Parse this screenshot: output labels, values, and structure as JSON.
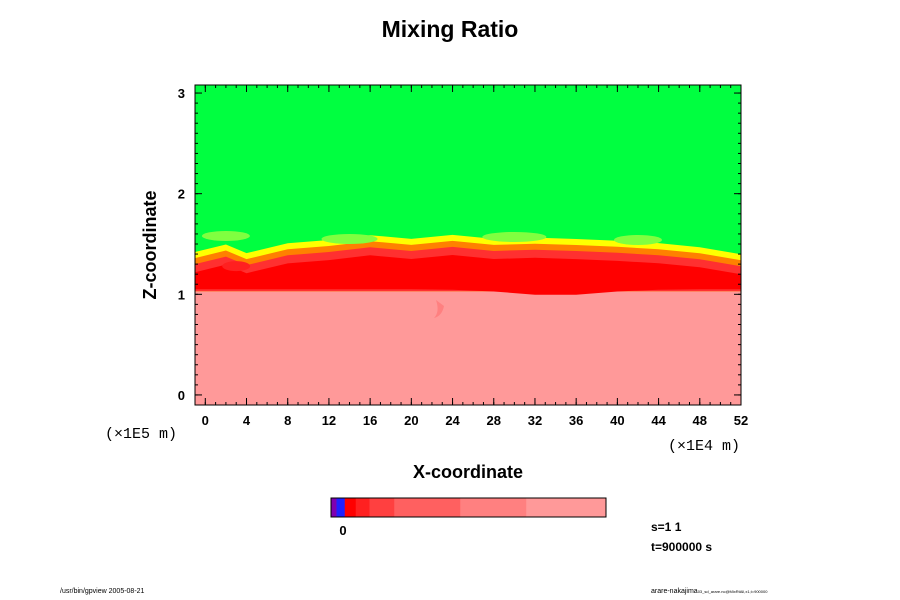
{
  "chart_data": {
    "type": "heatmap",
    "title": "Mixing Ratio",
    "xlabel": "X-coordinate",
    "ylabel": "Z-coordinate",
    "x_unit": "(×1E4 m)",
    "y_unit": "(×1E5 m)",
    "xlim": [
      -1,
      52
    ],
    "ylim": [
      -0.1,
      3.08
    ],
    "x_ticks": [
      "0",
      "4",
      "8",
      "12",
      "16",
      "20",
      "24",
      "28",
      "32",
      "36",
      "40",
      "44",
      "48",
      "52"
    ],
    "x_tick_values": [
      0,
      4,
      8,
      12,
      16,
      20,
      24,
      28,
      32,
      36,
      40,
      44,
      48,
      52
    ],
    "y_ticks": [
      "0",
      "1",
      "2",
      "3"
    ],
    "y_tick_values": [
      0,
      1,
      2,
      3
    ],
    "regions": [
      {
        "name": "upper",
        "z_range": [
          1.5,
          3.08
        ],
        "color": "#00ff40"
      },
      {
        "name": "interface",
        "z_range": [
          1.05,
          1.55
        ],
        "colors": [
          "#ffff00",
          "#ff8000",
          "#ff3030",
          "#ff0000"
        ]
      },
      {
        "name": "lower",
        "z_range": [
          -0.1,
          1.05
        ],
        "color": "#ff9999"
      }
    ],
    "interface_height": [
      {
        "x": -1,
        "z": 1.32
      },
      {
        "x": 2,
        "z": 1.38
      },
      {
        "x": 4,
        "z": 1.28
      },
      {
        "x": 8,
        "z": 1.37
      },
      {
        "x": 12,
        "z": 1.4
      },
      {
        "x": 16,
        "z": 1.45
      },
      {
        "x": 20,
        "z": 1.42
      },
      {
        "x": 24,
        "z": 1.47
      },
      {
        "x": 28,
        "z": 1.44
      },
      {
        "x": 32,
        "z": 1.46
      },
      {
        "x": 36,
        "z": 1.45
      },
      {
        "x": 40,
        "z": 1.43
      },
      {
        "x": 44,
        "z": 1.4
      },
      {
        "x": 48,
        "z": 1.35
      },
      {
        "x": 52,
        "z": 1.27
      }
    ],
    "colorbar": {
      "label": "0",
      "segments": [
        "#7f00b0",
        "#2020ff",
        "#ff0000",
        "#ff2020",
        "#ff4040",
        "#ff6060",
        "#ff8080",
        "#ff9999"
      ],
      "fractions": [
        0.02,
        0.03,
        0.04,
        0.05,
        0.09,
        0.24,
        0.24,
        0.29
      ]
    }
  },
  "info": {
    "s_label": "s=1 1",
    "t_label": "t=900000 s"
  },
  "footer": {
    "left": "/usr/bin/gpview 2005-08-21",
    "right": "arare-nakajima",
    "right_small": "03_sd_arare.nc@MixRtAll,x1,t=900000"
  }
}
